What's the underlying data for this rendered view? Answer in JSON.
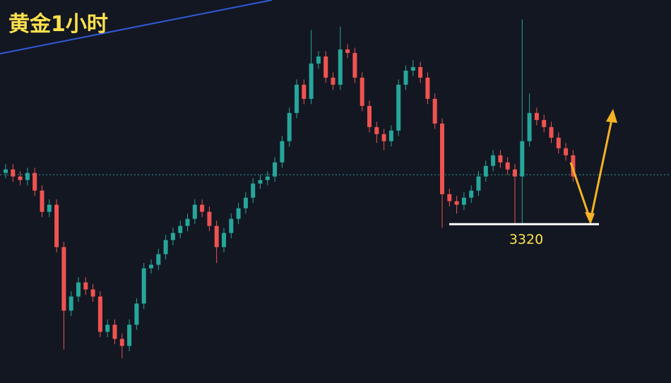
{
  "chart_data": {
    "type": "candlestick",
    "title": "黄金1小时",
    "open": [
      3349,
      3351,
      3347,
      3345,
      3349,
      3339,
      3327,
      3331,
      3307,
      3271,
      3279,
      3287,
      3283,
      3279,
      3259,
      3263,
      3255,
      3251,
      3263,
      3275,
      3295,
      3297,
      3303,
      3311,
      3315,
      3319,
      3323,
      3331,
      3327,
      3319,
      3307,
      3315,
      3323,
      3329,
      3335,
      3343,
      3345,
      3347,
      3355,
      3367,
      3383,
      3399,
      3391,
      3411,
      3415,
      3403,
      3399,
      3419,
      3417,
      3403,
      3387,
      3375,
      3371,
      3367,
      3373,
      3399,
      3407,
      3409,
      3403,
      3391,
      3377,
      3337,
      3333,
      3331,
      3335,
      3339,
      3347,
      3353,
      3359,
      3355,
      3351,
      3347,
      3367,
      3383,
      3379,
      3375,
      3369,
      3363,
      3359
    ],
    "high": [
      3354,
      3354,
      3350,
      3352,
      3352,
      3342,
      3334,
      3334,
      3310,
      3282,
      3290,
      3290,
      3286,
      3282,
      3266,
      3266,
      3258,
      3266,
      3278,
      3298,
      3300,
      3306,
      3314,
      3318,
      3322,
      3326,
      3334,
      3334,
      3330,
      3322,
      3318,
      3326,
      3332,
      3338,
      3346,
      3348,
      3350,
      3358,
      3370,
      3386,
      3402,
      3402,
      3430,
      3418,
      3418,
      3406,
      3432,
      3422,
      3420,
      3406,
      3390,
      3378,
      3374,
      3376,
      3402,
      3410,
      3413,
      3412,
      3406,
      3394,
      3380,
      3340,
      3336,
      3338,
      3342,
      3350,
      3356,
      3362,
      3362,
      3358,
      3354,
      3436,
      3394,
      3386,
      3382,
      3378,
      3372,
      3366,
      3362
    ],
    "low": [
      3346,
      3344,
      3342,
      3342,
      3336,
      3324,
      3324,
      3304,
      3249,
      3268,
      3276,
      3280,
      3276,
      3256,
      3256,
      3252,
      3244,
      3248,
      3260,
      3272,
      3292,
      3294,
      3300,
      3308,
      3312,
      3316,
      3320,
      3324,
      3316,
      3298,
      3304,
      3312,
      3320,
      3326,
      3332,
      3340,
      3342,
      3344,
      3352,
      3364,
      3380,
      3388,
      3388,
      3408,
      3400,
      3396,
      3396,
      3414,
      3400,
      3384,
      3372,
      3366,
      3362,
      3364,
      3370,
      3396,
      3404,
      3400,
      3388,
      3374,
      3318,
      3330,
      3326,
      3328,
      3332,
      3336,
      3344,
      3350,
      3352,
      3348,
      3320,
      3320,
      3364,
      3376,
      3372,
      3366,
      3360,
      3356,
      3344
    ],
    "close": [
      3351,
      3347,
      3345,
      3349,
      3339,
      3327,
      3331,
      3307,
      3271,
      3279,
      3287,
      3283,
      3279,
      3259,
      3263,
      3255,
      3251,
      3263,
      3275,
      3295,
      3297,
      3303,
      3311,
      3315,
      3319,
      3323,
      3331,
      3327,
      3319,
      3307,
      3315,
      3323,
      3329,
      3335,
      3343,
      3345,
      3347,
      3355,
      3367,
      3383,
      3399,
      3391,
      3411,
      3415,
      3403,
      3399,
      3419,
      3417,
      3403,
      3387,
      3375,
      3371,
      3367,
      3373,
      3399,
      3407,
      3409,
      3403,
      3391,
      3377,
      3337,
      3333,
      3331,
      3335,
      3339,
      3347,
      3353,
      3359,
      3355,
      3351,
      3347,
      3367,
      3383,
      3379,
      3375,
      3369,
      3363,
      3359,
      3347
    ],
    "up_color": "#26a69a",
    "down_color": "#ef5350",
    "ylim": [
      3230,
      3447
    ],
    "price_line": 3348,
    "support": 3320
  }
}
